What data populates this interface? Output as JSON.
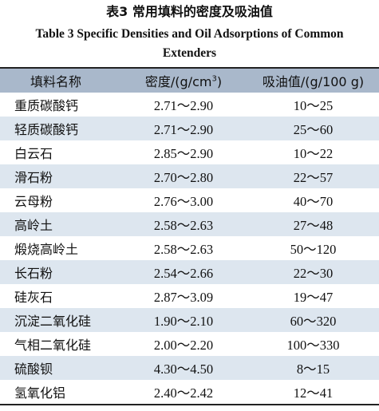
{
  "caption": {
    "cn": "表3   常用填料的密度及吸油值",
    "en_line1": "Table 3   Specific Densities and Oil Adsorptions of Common",
    "en_line2": "Extenders"
  },
  "header": {
    "name": "填料名称",
    "density_prefix": "密度/(g/cm",
    "density_sup": "3",
    "density_suffix": ")",
    "oil": "吸油值/(g/100 g)"
  },
  "rows": [
    {
      "name": "重质碳酸钙",
      "density": "2.71～2.90",
      "oil": "10～25"
    },
    {
      "name": "轻质碳酸钙",
      "density": "2.71～2.90",
      "oil": "25～60"
    },
    {
      "name": "白云石",
      "density": "2.85～2.90",
      "oil": "10～22"
    },
    {
      "name": "滑石粉",
      "density": "2.70～2.80",
      "oil": "22～57"
    },
    {
      "name": "云母粉",
      "density": "2.76～3.00",
      "oil": "40～70"
    },
    {
      "name": "高岭土",
      "density": "2.58～2.63",
      "oil": "27～48"
    },
    {
      "name": "煅烧高岭土",
      "density": "2.58～2.63",
      "oil": "50～120"
    },
    {
      "name": "长石粉",
      "density": "2.54～2.66",
      "oil": "22～30"
    },
    {
      "name": "硅灰石",
      "density": "2.87～3.09",
      "oil": "19～47"
    },
    {
      "name": "沉淀二氧化硅",
      "density": "1.90～2.10",
      "oil": "60～320"
    },
    {
      "name": "气相二氧化硅",
      "density": "2.00～2.20",
      "oil": "100～330"
    },
    {
      "name": "硫酸钡",
      "density": "4.30～4.50",
      "oil": "8～15"
    },
    {
      "name": "氢氧化铝",
      "density": "2.40～2.42",
      "oil": "12～41"
    }
  ],
  "colors": {
    "header_bg": "#a9b8cb",
    "alt_row_bg": "#dde6ef",
    "rule": "#222222"
  }
}
